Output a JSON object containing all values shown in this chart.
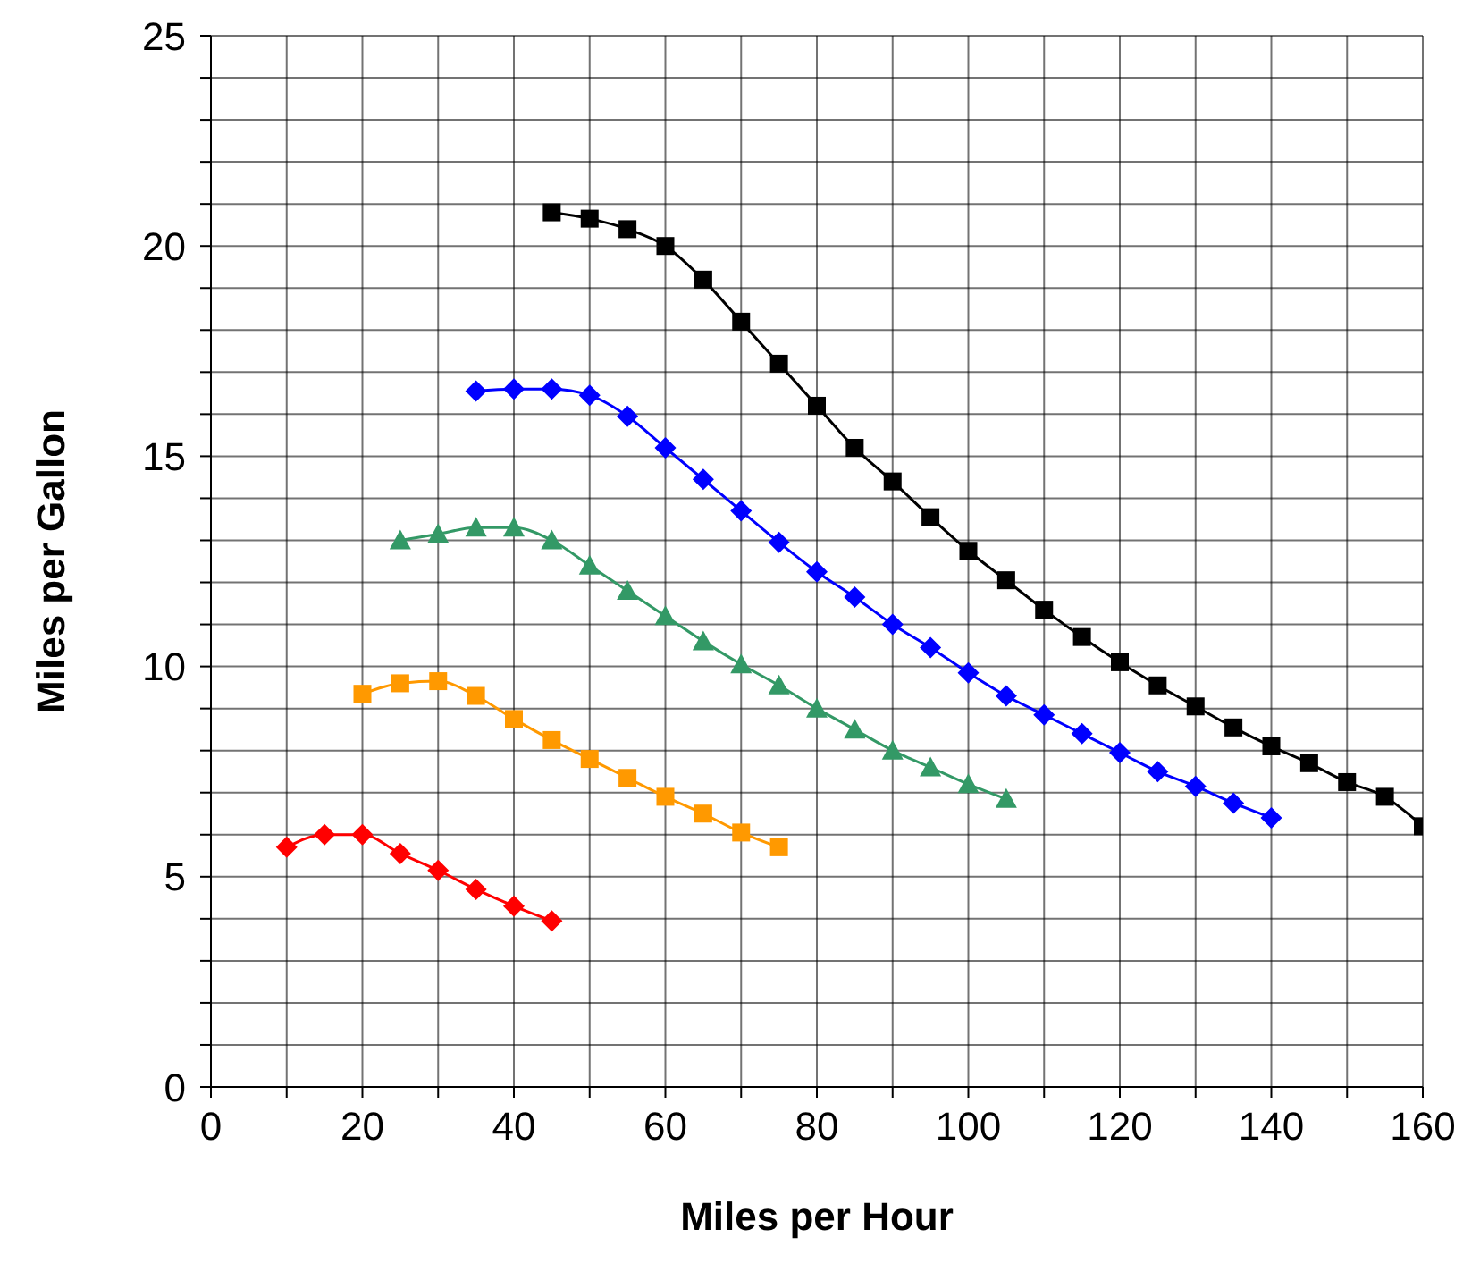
{
  "chart_data": {
    "type": "line",
    "xlabel": "Miles per Hour",
    "ylabel": "Miles per Gallon",
    "xlim": [
      0,
      160
    ],
    "ylim": [
      0,
      25
    ],
    "xticks": [
      0,
      {
        "value": 10,
        "label": null
      },
      20,
      {
        "value": 30,
        "label": null
      },
      40,
      {
        "value": 50,
        "label": null
      },
      60,
      {
        "value": 70,
        "label": null
      },
      80,
      {
        "value": 90,
        "label": null
      },
      100,
      {
        "value": 110,
        "label": null
      },
      120,
      {
        "value": 130,
        "label": null
      },
      140,
      {
        "value": 150,
        "label": null
      },
      160
    ],
    "yticks": [
      0,
      {
        "value": 1,
        "label": null
      },
      {
        "value": 2,
        "label": null
      },
      {
        "value": 3,
        "label": null
      },
      {
        "value": 4,
        "label": null
      },
      5,
      {
        "value": 6,
        "label": null
      },
      {
        "value": 7,
        "label": null
      },
      {
        "value": 8,
        "label": null
      },
      {
        "value": 9,
        "label": null
      },
      10,
      {
        "value": 11,
        "label": null
      },
      {
        "value": 12,
        "label": null
      },
      {
        "value": 13,
        "label": null
      },
      {
        "value": 14,
        "label": null
      },
      15,
      {
        "value": 16,
        "label": null
      },
      {
        "value": 17,
        "label": null
      },
      {
        "value": 18,
        "label": null
      },
      {
        "value": 19,
        "label": null
      },
      20,
      {
        "value": 21,
        "label": null
      },
      {
        "value": 22,
        "label": null
      },
      {
        "value": 23,
        "label": null
      },
      {
        "value": 24,
        "label": null
      },
      25
    ],
    "grid": true,
    "legend": false,
    "line_style": "solid",
    "series": [
      {
        "color": "#ff0000",
        "marker": "diamond",
        "x": [
          10,
          15,
          20,
          25,
          30,
          35,
          40,
          45
        ],
        "values": [
          5.7,
          6.0,
          6.0,
          5.55,
          5.15,
          4.7,
          4.3,
          3.95
        ]
      },
      {
        "color": "#ff9900",
        "marker": "square",
        "x": [
          20,
          25,
          30,
          35,
          40,
          45,
          50,
          55,
          60,
          65,
          70,
          75
        ],
        "values": [
          9.35,
          9.6,
          9.65,
          9.3,
          8.75,
          8.25,
          7.8,
          7.35,
          6.9,
          6.5,
          6.05,
          5.7
        ]
      },
      {
        "color": "#339966",
        "marker": "triangle",
        "x": [
          25,
          30,
          35,
          40,
          45,
          50,
          55,
          60,
          65,
          70,
          75,
          80,
          85,
          90,
          95,
          100,
          105
        ],
        "values": [
          13.0,
          13.15,
          13.3,
          13.3,
          13.0,
          12.4,
          11.8,
          11.2,
          10.6,
          10.05,
          9.55,
          9.0,
          8.5,
          8.0,
          7.6,
          7.2,
          6.85
        ]
      },
      {
        "color": "#0000ff",
        "marker": "diamond",
        "x": [
          35,
          40,
          45,
          50,
          55,
          60,
          65,
          70,
          75,
          80,
          85,
          90,
          95,
          100,
          105,
          110,
          115,
          120,
          125,
          130,
          135,
          140
        ],
        "values": [
          16.55,
          16.6,
          16.6,
          16.45,
          15.95,
          15.2,
          14.45,
          13.7,
          12.95,
          12.25,
          11.65,
          11.0,
          10.45,
          9.85,
          9.3,
          8.85,
          8.4,
          7.95,
          7.5,
          7.15,
          6.75,
          6.4
        ]
      },
      {
        "color": "#000000",
        "marker": "square",
        "x": [
          45,
          50,
          55,
          60,
          65,
          70,
          75,
          80,
          85,
          90,
          95,
          100,
          105,
          110,
          115,
          120,
          125,
          130,
          135,
          140,
          145,
          150,
          155,
          160
        ],
        "values": [
          20.8,
          20.65,
          20.4,
          20.0,
          19.2,
          18.2,
          17.2,
          16.2,
          15.2,
          14.4,
          13.55,
          12.75,
          12.05,
          11.35,
          10.7,
          10.1,
          9.55,
          9.05,
          8.55,
          8.1,
          7.7,
          7.25,
          6.9,
          6.2
        ]
      }
    ]
  }
}
